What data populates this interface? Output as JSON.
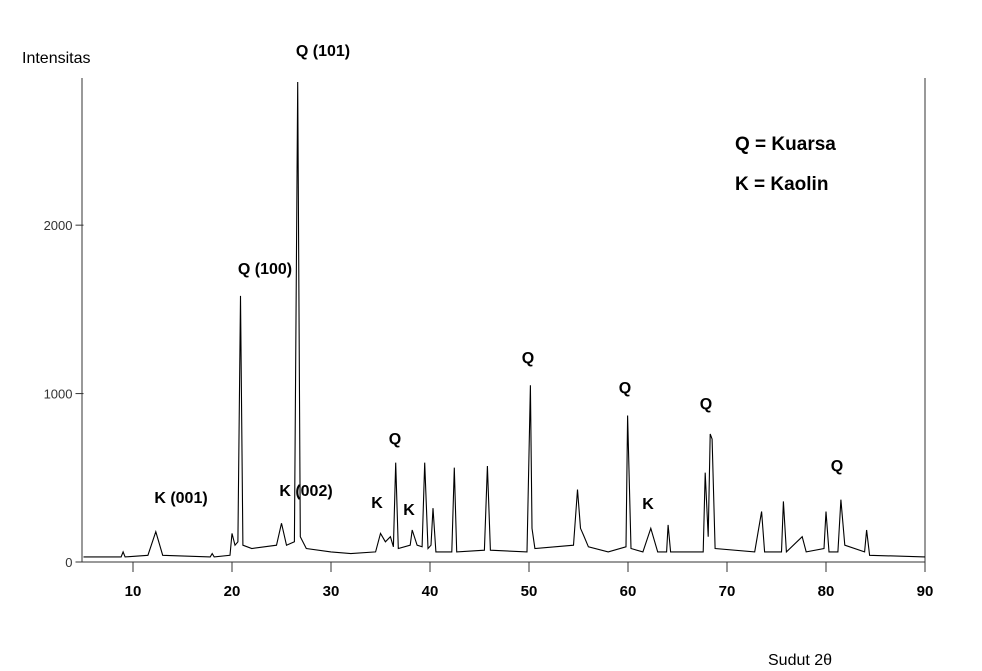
{
  "chart_data": {
    "type": "line",
    "y_label": "Intensitas",
    "x_label": "Sudut 2θ",
    "legend_lines": [
      "Q = Kuarsa",
      "K = Kaolin"
    ],
    "annotations": [
      "Q (101)",
      "Q (100)",
      "K (001)",
      "K (002)",
      "Q",
      "K",
      "K",
      "Q",
      "Q",
      "K",
      "Q",
      "Q"
    ],
    "color": "#000000",
    "x": [
      5,
      8.8,
      9,
      9.2,
      11.5,
      12.3,
      13,
      17.8,
      18,
      18.2,
      19.8,
      20,
      20.3,
      20.6,
      20.86,
      21.1,
      22,
      24.5,
      25,
      25.5,
      26.3,
      26.64,
      26.9,
      27.5,
      30,
      32,
      34.5,
      35,
      35.5,
      36,
      36.3,
      36.54,
      36.8,
      38,
      38.2,
      38.7,
      39.2,
      39.46,
      39.8,
      40.1,
      40.3,
      40.6,
      42.2,
      42.45,
      42.7,
      45.5,
      45.8,
      46.1,
      49.8,
      50.14,
      50.3,
      50.6,
      54.5,
      54.9,
      55.2,
      55.5,
      56,
      58,
      59.8,
      59.96,
      60.3,
      61.5,
      62.3,
      63,
      63.9,
      64.05,
      64.3,
      67.6,
      67.8,
      68.1,
      68.3,
      68.5,
      68.8,
      72.8,
      73.5,
      73.8,
      75.5,
      75.7,
      76,
      77.6,
      78,
      79.8,
      80,
      80.3,
      81.2,
      81.5,
      81.9,
      83.9,
      84.1,
      84.4,
      90
    ],
    "values": [
      30,
      30,
      60,
      30,
      40,
      180,
      40,
      30,
      50,
      30,
      40,
      170,
      100,
      120,
      1580,
      100,
      80,
      100,
      230,
      100,
      120,
      2850,
      150,
      80,
      60,
      50,
      60,
      170,
      120,
      150,
      90,
      590,
      80,
      100,
      190,
      100,
      90,
      590,
      80,
      100,
      320,
      60,
      60,
      560,
      60,
      70,
      570,
      70,
      60,
      1050,
      200,
      80,
      100,
      430,
      200,
      160,
      90,
      60,
      90,
      870,
      80,
      60,
      200,
      60,
      60,
      220,
      60,
      60,
      530,
      150,
      760,
      730,
      80,
      60,
      300,
      60,
      60,
      360,
      60,
      150,
      60,
      80,
      300,
      60,
      60,
      370,
      100,
      60,
      190,
      40,
      30
    ],
    "xlim": [
      5,
      90
    ],
    "ylim": [
      0,
      2850
    ],
    "xticks": [
      10,
      20,
      30,
      40,
      50,
      60,
      70,
      80,
      90
    ],
    "yticks": [
      0,
      1000,
      2000
    ]
  }
}
